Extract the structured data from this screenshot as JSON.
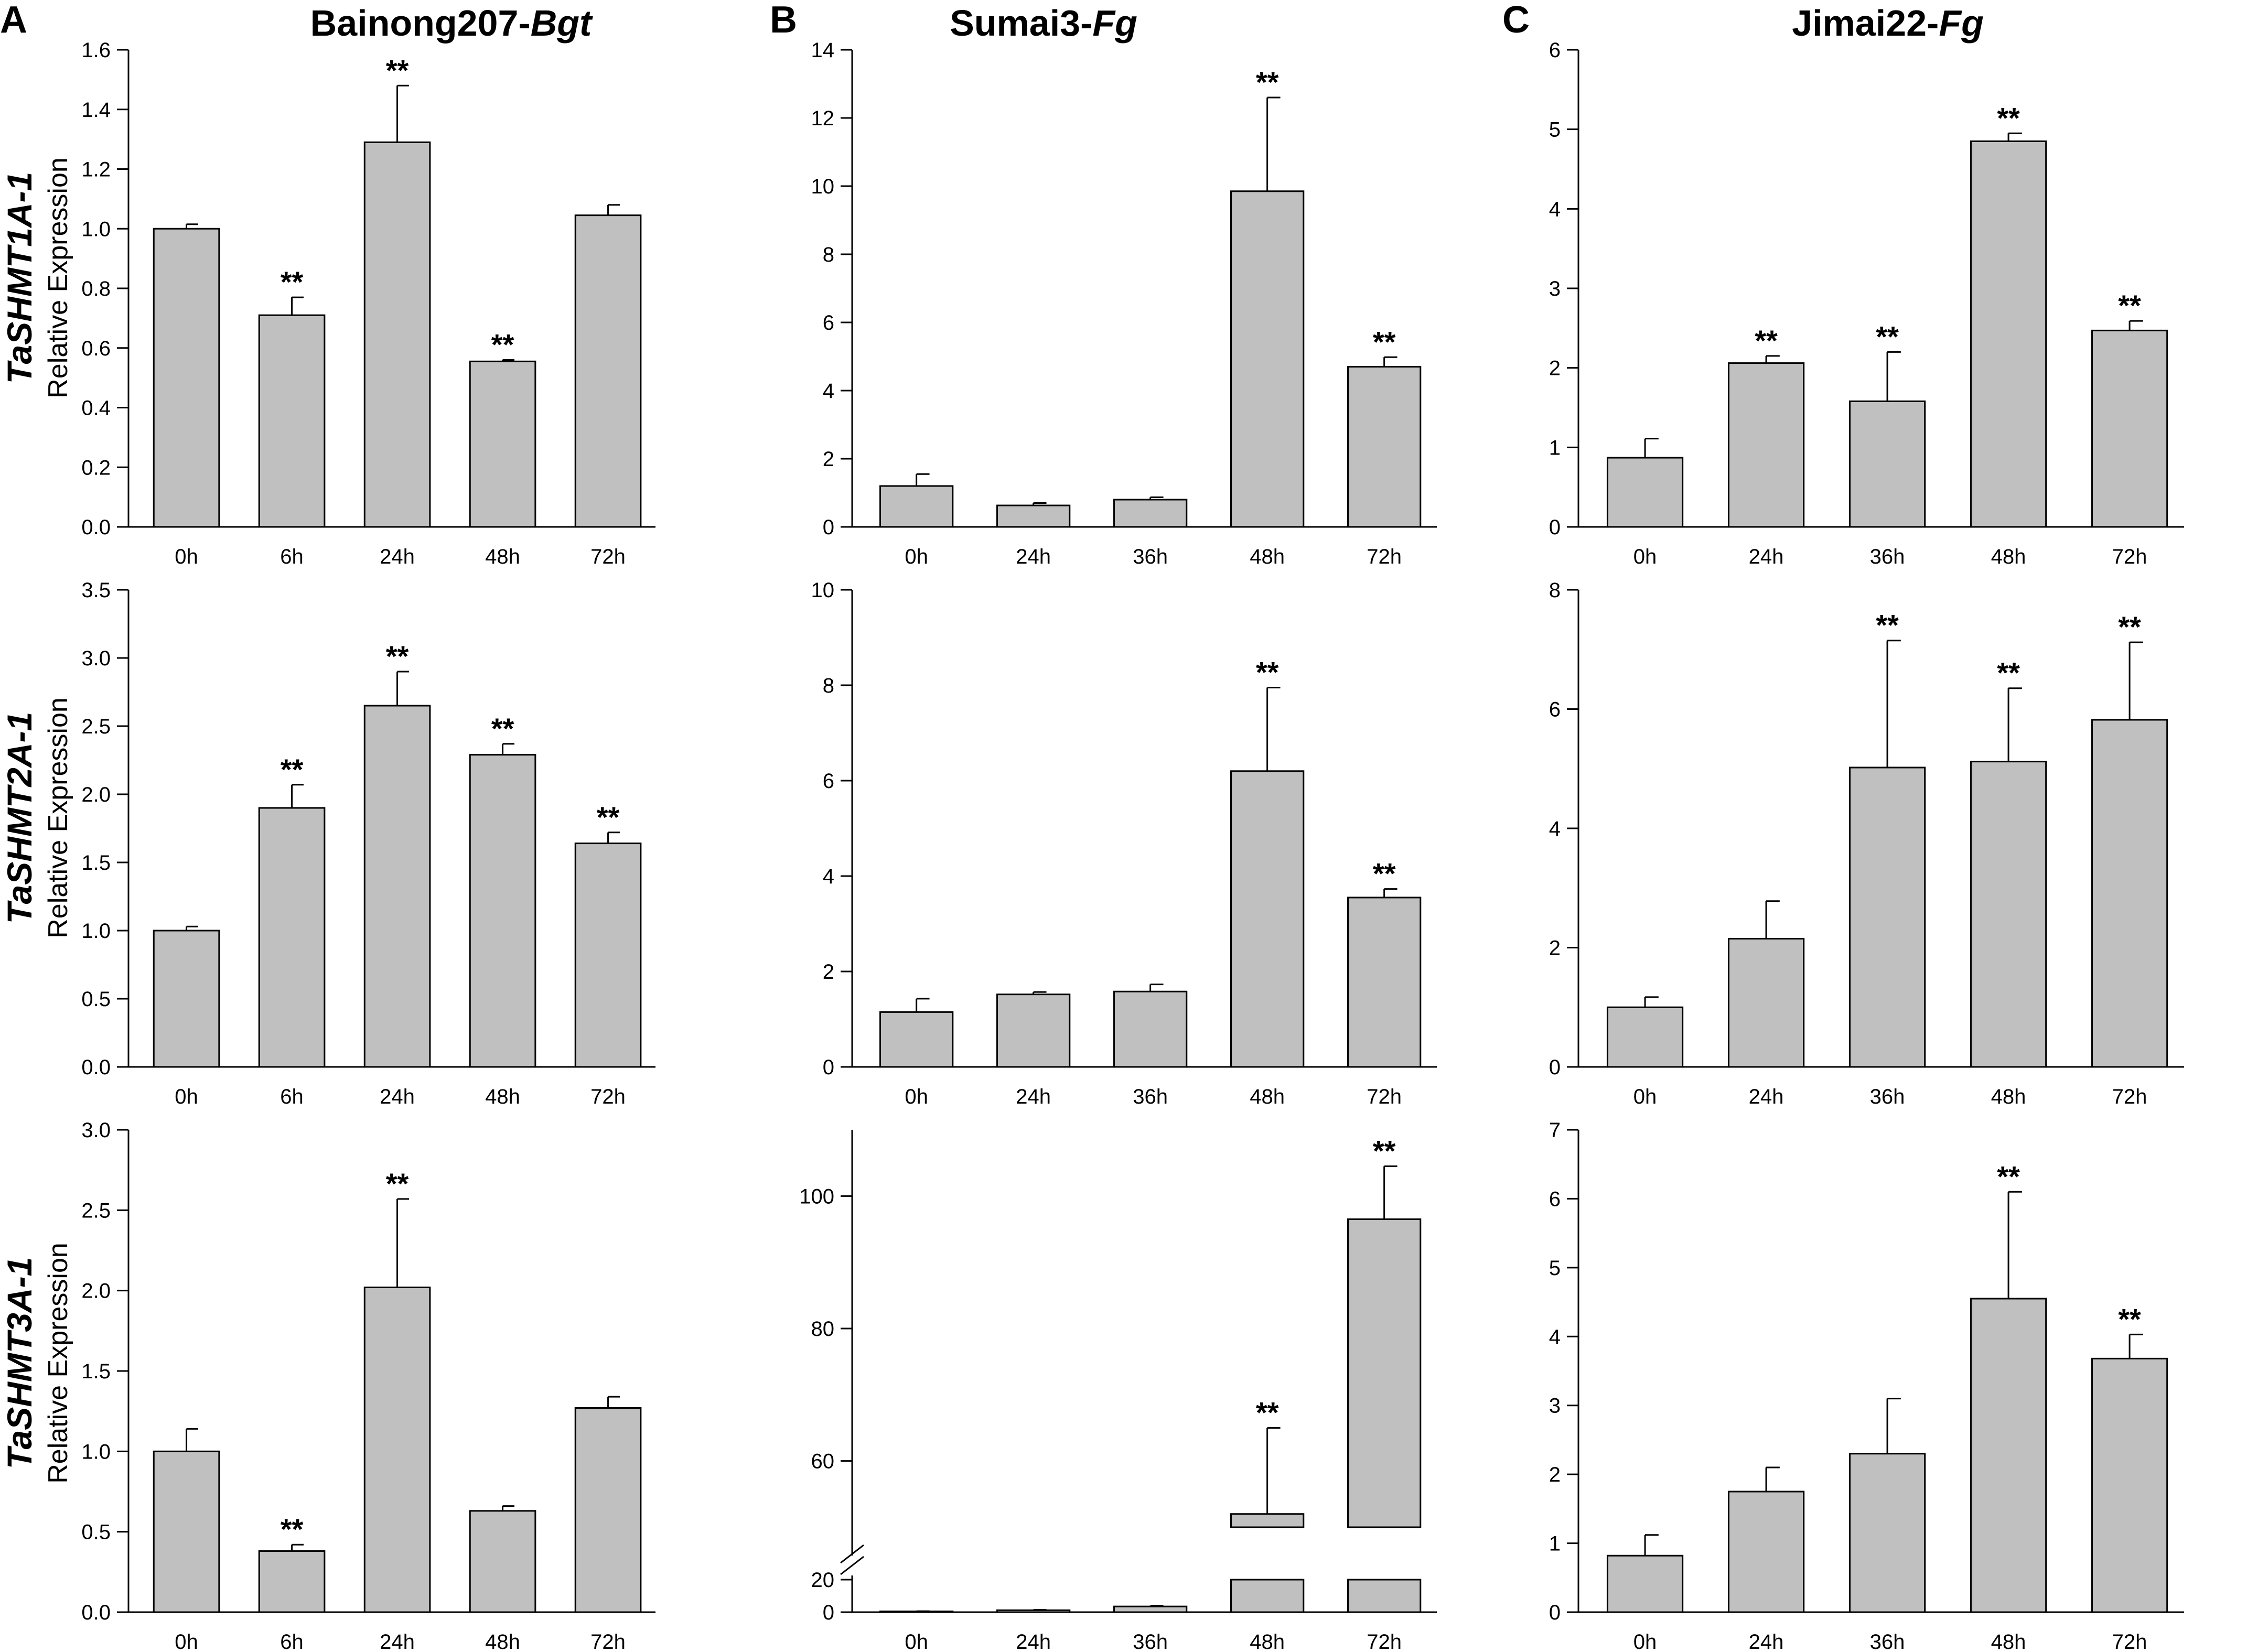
{
  "columns": [
    {
      "letter": "A",
      "title_main": "Bainong207-",
      "title_italic": "Bgt"
    },
    {
      "letter": "B",
      "title_main": "Sumai3-",
      "title_italic": "Fg"
    },
    {
      "letter": "C",
      "title_main": "Jimai22-",
      "title_italic": "Fg"
    }
  ],
  "rows": [
    {
      "gene": "TaSHMT1A-1",
      "ylabel": "Relative Expression"
    },
    {
      "gene": "TaSHMT2A-1",
      "ylabel": "Relative Expression"
    },
    {
      "gene": "TaSHMT3A-1",
      "ylabel": "Relative Expression"
    }
  ],
  "chart_data": [
    {
      "type": "bar",
      "row": 0,
      "col": 0,
      "categories": [
        "0h",
        "6h",
        "24h",
        "48h",
        "72h"
      ],
      "values": [
        1.0,
        0.71,
        1.29,
        0.555,
        1.045
      ],
      "errors": [
        0.015,
        0.06,
        0.19,
        0.005,
        0.035
      ],
      "significance": [
        "",
        "**",
        "**",
        "**",
        ""
      ],
      "ylim": [
        0,
        1.6
      ],
      "yticks": [
        "0.0",
        "0.2",
        "0.4",
        "0.6",
        "0.8",
        "1.0",
        "1.2",
        "1.4",
        "1.6"
      ]
    },
    {
      "type": "bar",
      "row": 0,
      "col": 1,
      "categories": [
        "0h",
        "24h",
        "36h",
        "48h",
        "72h"
      ],
      "values": [
        1.2,
        0.63,
        0.8,
        9.85,
        4.7
      ],
      "errors": [
        0.35,
        0.07,
        0.07,
        2.75,
        0.28
      ],
      "significance": [
        "",
        "",
        "",
        "**",
        "**"
      ],
      "ylim": [
        0,
        14
      ],
      "yticks": [
        "0",
        "2",
        "4",
        "6",
        "8",
        "10",
        "12",
        "14"
      ]
    },
    {
      "type": "bar",
      "row": 0,
      "col": 2,
      "categories": [
        "0h",
        "24h",
        "36h",
        "48h",
        "72h"
      ],
      "values": [
        0.87,
        2.06,
        1.58,
        4.85,
        2.47
      ],
      "errors": [
        0.24,
        0.09,
        0.62,
        0.1,
        0.12
      ],
      "significance": [
        "",
        "**",
        "**",
        "**",
        "**"
      ],
      "ylim": [
        0,
        6
      ],
      "yticks": [
        "0",
        "1",
        "2",
        "3",
        "4",
        "5",
        "6"
      ]
    },
    {
      "type": "bar",
      "row": 1,
      "col": 0,
      "categories": [
        "0h",
        "6h",
        "24h",
        "48h",
        "72h"
      ],
      "values": [
        1.0,
        1.9,
        2.65,
        2.29,
        1.64
      ],
      "errors": [
        0.03,
        0.17,
        0.25,
        0.08,
        0.08
      ],
      "significance": [
        "",
        "**",
        "**",
        "**",
        "**"
      ],
      "ylim": [
        0,
        3.5
      ],
      "yticks": [
        "0.0",
        "0.5",
        "1.0",
        "1.5",
        "2.0",
        "2.5",
        "3.0",
        "3.5"
      ]
    },
    {
      "type": "bar",
      "row": 1,
      "col": 1,
      "categories": [
        "0h",
        "24h",
        "36h",
        "48h",
        "72h"
      ],
      "values": [
        1.15,
        1.52,
        1.58,
        6.2,
        3.55
      ],
      "errors": [
        0.28,
        0.05,
        0.15,
        1.75,
        0.18
      ],
      "significance": [
        "",
        "",
        "",
        "**",
        "**"
      ],
      "ylim": [
        0,
        10
      ],
      "yticks": [
        "0",
        "2",
        "4",
        "6",
        "8",
        "10"
      ]
    },
    {
      "type": "bar",
      "row": 1,
      "col": 2,
      "categories": [
        "0h",
        "24h",
        "36h",
        "48h",
        "72h"
      ],
      "values": [
        1.0,
        2.15,
        5.02,
        5.12,
        5.82
      ],
      "errors": [
        0.17,
        0.63,
        2.13,
        1.23,
        1.3
      ],
      "significance": [
        "",
        "",
        "**",
        "**",
        "**"
      ],
      "ylim": [
        0,
        8
      ],
      "yticks": [
        "0",
        "2",
        "4",
        "6",
        "8"
      ]
    },
    {
      "type": "bar",
      "row": 2,
      "col": 0,
      "categories": [
        "0h",
        "6h",
        "24h",
        "48h",
        "72h"
      ],
      "values": [
        1.0,
        0.38,
        2.02,
        0.63,
        1.27
      ],
      "errors": [
        0.14,
        0.04,
        0.55,
        0.03,
        0.07
      ],
      "significance": [
        "",
        "**",
        "**",
        "",
        ""
      ],
      "ylim": [
        0,
        3.0
      ],
      "yticks": [
        "0.0",
        "0.5",
        "1.0",
        "1.5",
        "2.0",
        "2.5",
        "3.0"
      ]
    },
    {
      "type": "bar",
      "row": 2,
      "col": 1,
      "categories": [
        "0h",
        "24h",
        "36h",
        "48h",
        "72h"
      ],
      "values": [
        0.5,
        1.2,
        3.5,
        52.0,
        96.5
      ],
      "errors": [
        0.1,
        0.2,
        0.5,
        13.0,
        8.0
      ],
      "significance": [
        "",
        "",
        "",
        "**",
        "**"
      ],
      "axis_break": {
        "low_max": 20,
        "high_min": 50,
        "high_max": 110
      },
      "yticks": [
        "0",
        "20",
        "60",
        "80",
        "100"
      ]
    },
    {
      "type": "bar",
      "row": 2,
      "col": 2,
      "categories": [
        "0h",
        "24h",
        "36h",
        "48h",
        "72h"
      ],
      "values": [
        0.82,
        1.75,
        2.3,
        4.55,
        3.68
      ],
      "errors": [
        0.3,
        0.35,
        0.8,
        1.55,
        0.35
      ],
      "significance": [
        "",
        "",
        "",
        "**",
        "**"
      ],
      "ylim": [
        0,
        7
      ],
      "yticks": [
        "0",
        "1",
        "2",
        "3",
        "4",
        "5",
        "6",
        "7"
      ]
    }
  ]
}
